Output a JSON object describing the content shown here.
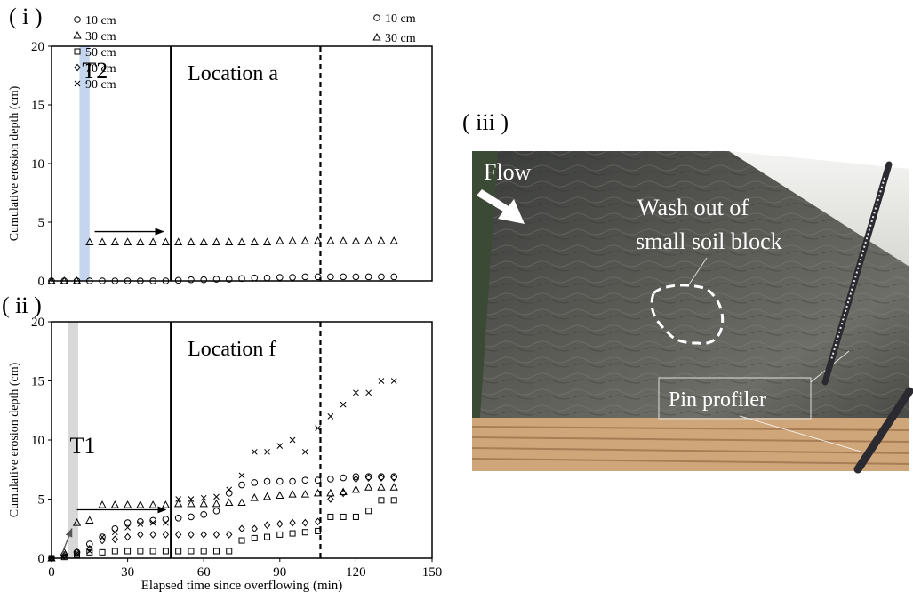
{
  "panels": {
    "i": "( i )",
    "ii": "( ii )",
    "iii": "( iii )"
  },
  "photo": {
    "flow_label": "Flow",
    "wash_label_line1": "Wash out of",
    "wash_label_line2": "small soil block",
    "pin_label": "Pin profiler"
  },
  "chart_data": [
    {
      "type": "scatter",
      "panel": "i",
      "ylabel": "Cumulative erosion depth (cm)",
      "xlabel": "",
      "xlim": [
        0,
        150
      ],
      "ylim": [
        0,
        20
      ],
      "yticks": [
        0,
        5,
        10,
        15,
        20
      ],
      "location_label": "Location a",
      "event_label": "T2",
      "event_span": [
        11,
        15
      ],
      "solid_line_x": 47,
      "dashed_line_x": 106,
      "arrow": {
        "from": [
          17,
          4.2
        ],
        "to": [
          44,
          4.2
        ]
      },
      "legend_position": "top-right",
      "series": [
        {
          "name": "10 cm",
          "marker": "circle",
          "x": [
            0,
            5,
            10,
            15,
            20,
            25,
            30,
            35,
            40,
            45,
            50,
            55,
            60,
            65,
            70,
            75,
            80,
            85,
            90,
            95,
            100,
            105,
            110,
            115,
            120,
            125,
            130,
            135
          ],
          "y": [
            0,
            0,
            0,
            0,
            0,
            0,
            0,
            0,
            0,
            0,
            0.05,
            0.1,
            0.1,
            0.15,
            0.15,
            0.2,
            0.25,
            0.25,
            0.3,
            0.3,
            0.35,
            0.35,
            0.35,
            0.35,
            0.35,
            0.35,
            0.35,
            0.35
          ]
        },
        {
          "name": "30 cm",
          "marker": "triangle",
          "x": [
            0,
            5,
            10,
            15,
            20,
            25,
            30,
            35,
            40,
            45,
            50,
            55,
            60,
            65,
            70,
            75,
            80,
            85,
            90,
            95,
            100,
            105,
            110,
            115,
            120,
            125,
            130,
            135
          ],
          "y": [
            0,
            0,
            0,
            3.3,
            3.3,
            3.3,
            3.3,
            3.3,
            3.3,
            3.3,
            3.3,
            3.3,
            3.3,
            3.3,
            3.3,
            3.3,
            3.3,
            3.3,
            3.4,
            3.4,
            3.4,
            3.4,
            3.4,
            3.4,
            3.4,
            3.4,
            3.4,
            3.4
          ]
        }
      ]
    },
    {
      "type": "scatter",
      "panel": "ii",
      "ylabel": "Cumulative erosion depth (cm)",
      "xlabel": "Elapsed time since overflowing (min)",
      "xlim": [
        0,
        150
      ],
      "ylim": [
        0,
        20
      ],
      "xticks": [
        0,
        30,
        60,
        90,
        120,
        150
      ],
      "yticks": [
        0,
        5,
        10,
        15,
        20
      ],
      "location_label": "Location f",
      "event_label": "T1",
      "event_span": [
        6.5,
        10.5
      ],
      "solid_line_x": 47,
      "dashed_line_x": 106,
      "arrows": [
        {
          "from": [
            4,
            0.3
          ],
          "to": [
            8,
            2.5
          ]
        },
        {
          "from": [
            10,
            4.1
          ],
          "to": [
            45,
            4.1
          ]
        }
      ],
      "legend_position": "top-left",
      "series": [
        {
          "name": "10 cm",
          "marker": "circle",
          "x": [
            0,
            5,
            10,
            15,
            20,
            25,
            30,
            35,
            40,
            45,
            50,
            55,
            60,
            65,
            70,
            75,
            80,
            85,
            90,
            95,
            100,
            105,
            110,
            115,
            120,
            125,
            130,
            135
          ],
          "y": [
            0,
            0.3,
            0.5,
            1.2,
            1.8,
            2.5,
            3.0,
            3.1,
            3.2,
            3.3,
            3.4,
            3.5,
            3.7,
            4.0,
            5.5,
            6.2,
            6.4,
            6.5,
            6.5,
            6.5,
            6.6,
            6.6,
            6.7,
            6.8,
            6.9,
            6.9,
            6.9,
            6.9
          ]
        },
        {
          "name": "30 cm",
          "marker": "triangle",
          "x": [
            0,
            5,
            10,
            15,
            20,
            25,
            30,
            35,
            40,
            45,
            50,
            55,
            60,
            65,
            70,
            75,
            80,
            85,
            90,
            95,
            100,
            105,
            110,
            115,
            120,
            125,
            130,
            135
          ],
          "y": [
            0,
            0.5,
            3.0,
            3.2,
            4.5,
            4.5,
            4.5,
            4.5,
            4.5,
            4.5,
            4.6,
            4.6,
            4.6,
            4.6,
            4.7,
            4.7,
            5.1,
            5.2,
            5.3,
            5.4,
            5.4,
            5.5,
            5.5,
            5.6,
            5.8,
            6.0,
            6.0,
            6.0
          ]
        },
        {
          "name": "50 cm",
          "marker": "square",
          "x": [
            0,
            5,
            10,
            15,
            20,
            25,
            30,
            35,
            40,
            45,
            50,
            55,
            60,
            65,
            70,
            75,
            80,
            85,
            90,
            95,
            100,
            105,
            110,
            115,
            120,
            125,
            130,
            135
          ],
          "y": [
            0,
            0.1,
            0.3,
            0.5,
            0.5,
            0.6,
            0.6,
            0.6,
            0.6,
            0.6,
            0.6,
            0.6,
            0.6,
            0.6,
            0.6,
            1.5,
            1.7,
            1.8,
            2.0,
            2.1,
            2.2,
            2.3,
            3.5,
            3.5,
            3.5,
            4.0,
            4.9,
            4.9
          ]
        },
        {
          "name": "70 cm",
          "marker": "diamond",
          "x": [
            0,
            5,
            10,
            15,
            20,
            25,
            30,
            35,
            40,
            45,
            50,
            55,
            60,
            65,
            70,
            75,
            80,
            85,
            90,
            95,
            100,
            105,
            110,
            115,
            120,
            125,
            130,
            135
          ],
          "y": [
            0,
            0.2,
            0.5,
            0.8,
            1.5,
            1.6,
            1.8,
            2.0,
            2.0,
            2.0,
            2.0,
            2.0,
            2.0,
            2.0,
            2.0,
            2.5,
            2.5,
            2.8,
            2.9,
            3.0,
            3.0,
            3.1,
            5.0,
            5.5,
            6.7,
            6.8,
            6.8,
            6.8
          ]
        },
        {
          "name": "90 cm",
          "marker": "cross",
          "x": [
            0,
            5,
            10,
            15,
            20,
            25,
            30,
            35,
            40,
            45,
            50,
            55,
            60,
            65,
            70,
            75,
            80,
            85,
            90,
            95,
            100,
            105,
            110,
            115,
            120,
            125,
            130,
            135
          ],
          "y": [
            0,
            0.2,
            0.4,
            0.6,
            1.8,
            2.2,
            2.6,
            2.9,
            3.0,
            3.0,
            5.0,
            5.0,
            5.1,
            5.2,
            5.8,
            7.0,
            9.0,
            9.0,
            9.5,
            10.0,
            9.0,
            11.0,
            12.0,
            13.0,
            14.0,
            14.0,
            15.0,
            15.0
          ]
        }
      ]
    }
  ]
}
